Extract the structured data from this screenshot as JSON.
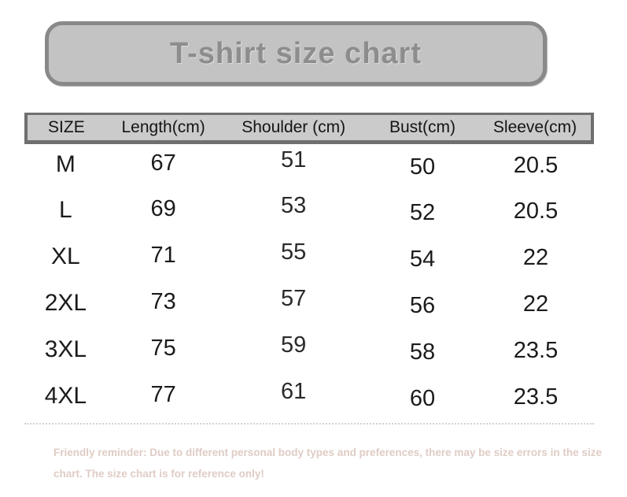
{
  "title": "T-shirt size chart",
  "table": {
    "column_keys": [
      "size",
      "length",
      "shoulder",
      "bust",
      "sleeve"
    ],
    "headers": [
      "SIZE",
      "Length(cm)",
      "Shoulder (cm)",
      "Bust(cm)",
      "Sleeve(cm)"
    ],
    "rows": [
      {
        "size": "M",
        "length": "67",
        "shoulder": "51",
        "bust": "50",
        "sleeve": "20.5"
      },
      {
        "size": "L",
        "length": "69",
        "shoulder": "53",
        "bust": "52",
        "sleeve": "20.5"
      },
      {
        "size": "XL",
        "length": "71",
        "shoulder": "55",
        "bust": "54",
        "sleeve": "22"
      },
      {
        "size": "2XL",
        "length": "73",
        "shoulder": "57",
        "bust": "56",
        "sleeve": "22"
      },
      {
        "size": "3XL",
        "length": "75",
        "shoulder": "59",
        "bust": "58",
        "sleeve": "23.5"
      },
      {
        "size": "4XL",
        "length": "77",
        "shoulder": "61",
        "bust": "60",
        "sleeve": "23.5"
      }
    ]
  },
  "footer": {
    "line1": "Friendly reminder: Due to different personal body types and preferences, there may be size errors in the size",
    "line2": "chart. The size chart is for reference only!"
  },
  "colors": {
    "banner_fill": "#c3c3c3",
    "banner_border": "#898989",
    "banner_text": "#8d8d8d",
    "header_fill": "#cbcbcb",
    "header_border": "#6f6f6f",
    "body_text": "#1b1b1b",
    "footer_text": "#dfccc5",
    "background": "#ffffff"
  },
  "chart_data": {
    "type": "table",
    "title": "T-shirt size chart",
    "columns": [
      "SIZE",
      "Length(cm)",
      "Shoulder (cm)",
      "Bust(cm)",
      "Sleeve(cm)"
    ],
    "rows": [
      [
        "M",
        67,
        51,
        50,
        20.5
      ],
      [
        "L",
        69,
        53,
        52,
        20.5
      ],
      [
        "XL",
        71,
        55,
        54,
        22
      ],
      [
        "2XL",
        73,
        57,
        56,
        22
      ],
      [
        "3XL",
        75,
        59,
        58,
        23.5
      ],
      [
        "4XL",
        77,
        61,
        60,
        23.5
      ]
    ],
    "note": "Friendly reminder: Due to different personal body types and preferences, there may be size errors in the size chart. The size chart is for reference only!"
  }
}
